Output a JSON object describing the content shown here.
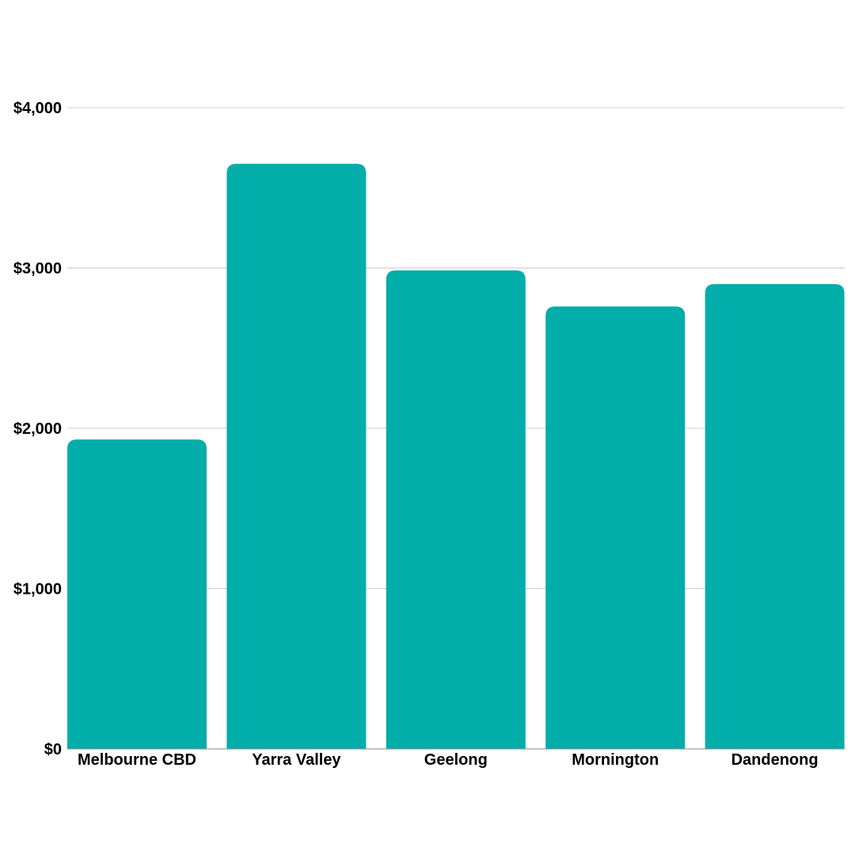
{
  "chart_data": {
    "type": "bar",
    "categories": [
      "Melbourne CBD",
      "Yarra Valley",
      "Geelong",
      "Mornington",
      "Dandenong"
    ],
    "values": [
      1930,
      3650,
      2985,
      2760,
      2900
    ],
    "title": "",
    "xlabel": "",
    "ylabel": "",
    "ylim": [
      0,
      4000
    ],
    "yticks": [
      0,
      1000,
      2000,
      3000,
      4000
    ],
    "ytick_labels": [
      "$0",
      "$1,000",
      "$2,000",
      "$3,000",
      "$4,000"
    ],
    "grid": true,
    "legend": "none",
    "bar_color": "#03ADA9",
    "grid_color": "#CCCCCC",
    "axis_color": "#888888"
  }
}
